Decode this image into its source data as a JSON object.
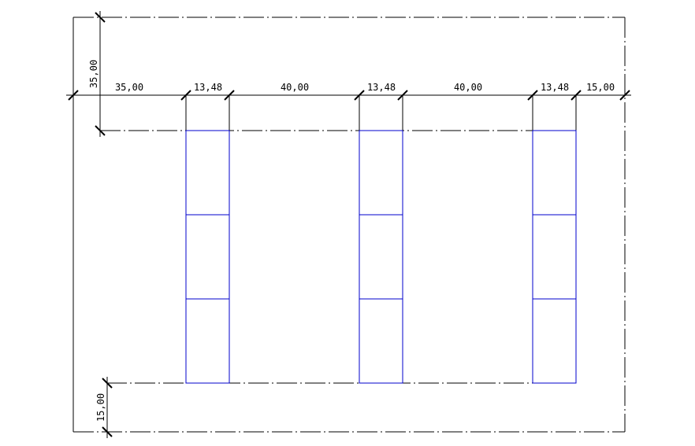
{
  "drawing": {
    "colors": {
      "lines": "#000000",
      "pallets": "#0000cc",
      "background": "#ffffff"
    },
    "horizontal_dimensions": [
      {
        "name": "dim-gap-left",
        "label": "35,00"
      },
      {
        "name": "dim-pallet-1",
        "label": "13,48"
      },
      {
        "name": "dim-gap-1-2",
        "label": "40,00"
      },
      {
        "name": "dim-pallet-2",
        "label": "13,48"
      },
      {
        "name": "dim-gap-2-3",
        "label": "40,00"
      },
      {
        "name": "dim-pallet-3",
        "label": "13,48"
      },
      {
        "name": "dim-gap-right",
        "label": "15,00"
      }
    ],
    "vertical_dimensions": {
      "top": {
        "label": "35,00"
      },
      "bottom": {
        "label": "15,00"
      }
    },
    "pallets": [
      {
        "name": "pallet-1",
        "sections": 3
      },
      {
        "name": "pallet-2",
        "sections": 3
      },
      {
        "name": "pallet-3",
        "sections": 3
      }
    ]
  }
}
